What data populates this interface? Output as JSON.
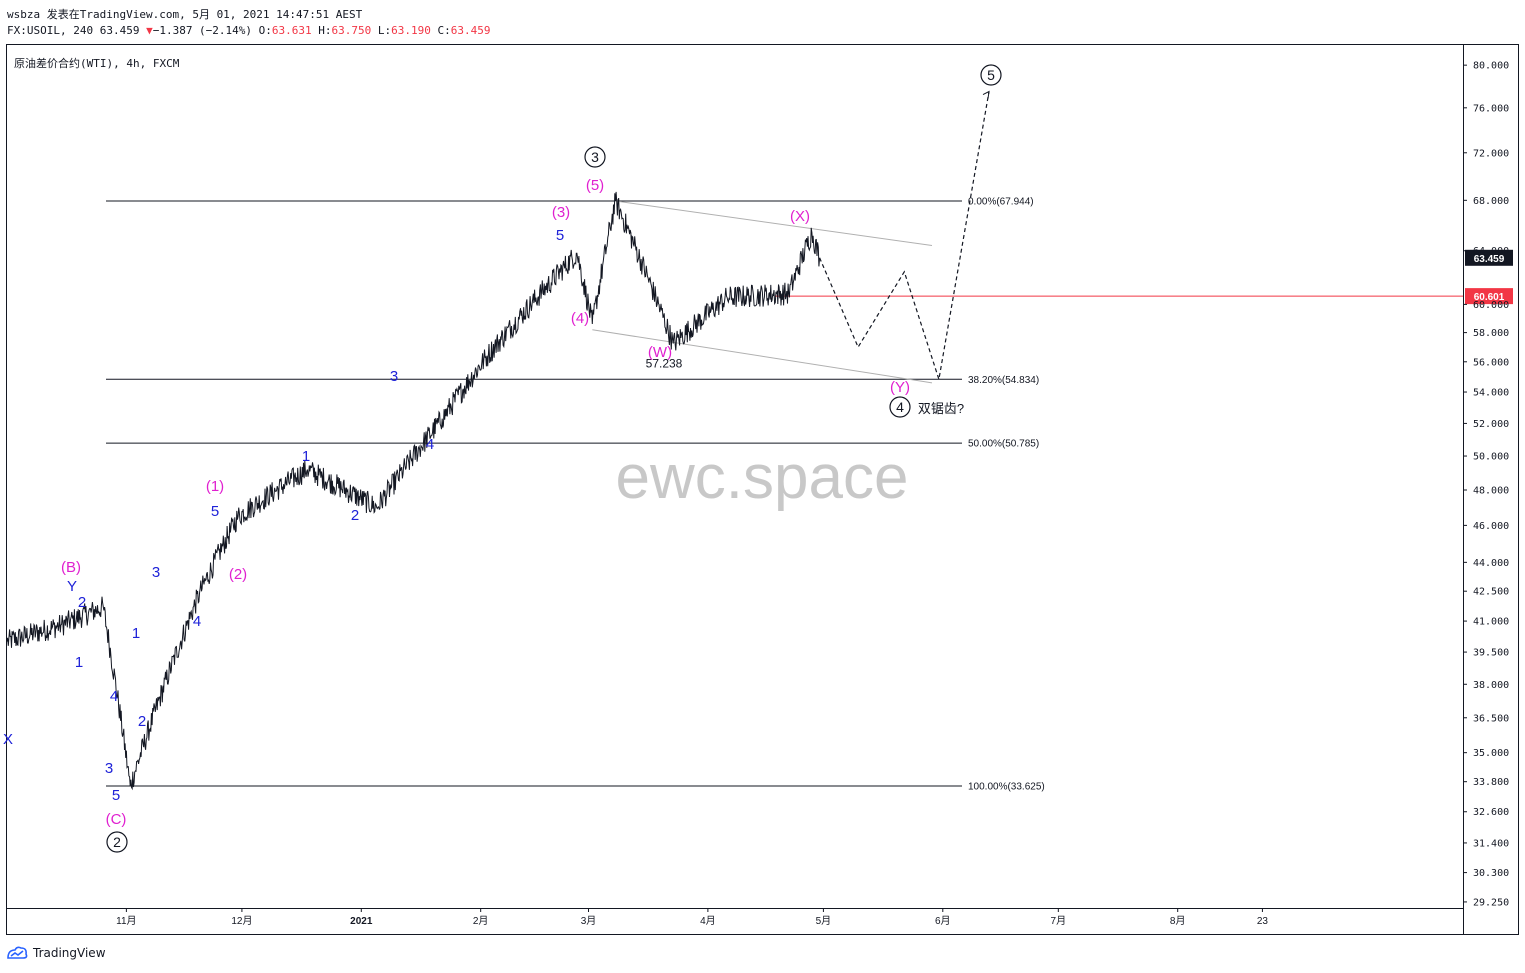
{
  "header": {
    "publisher_line": "wsbza 发表在TradingView.com, 5月 01, 2021 14:47:51 AEST",
    "symbol_prefix": "FX:USOIL, 240 63.459",
    "change": "−1.387 (−2.14%)",
    "o_label": "O:",
    "o_value": "63.631",
    "h_label": "H:",
    "h_value": "63.750",
    "l_label": "L:",
    "l_value": "63.190",
    "c_label": "C:",
    "c_value": "63.459"
  },
  "symbol_title": "原油差价合约(WTI), 4h, FXCM",
  "watermark": "ewc.space",
  "footer_brand": "TradingView",
  "colors": {
    "price_line": "#131722",
    "wave_blue": "#1e22d8",
    "wave_magenta": "#e020d0",
    "support_red": "#f23645",
    "watermark": "#c8c8c8",
    "last_price_bg": "#131722"
  },
  "chart_data": {
    "type": "line",
    "title": "原油差价合约(WTI), 4h, FXCM",
    "xlabel": "",
    "ylabel": "",
    "log_scale": true,
    "ylim": [
      29.25,
      80.0
    ],
    "grid": false,
    "x_ticks": [
      "11月",
      "12月",
      "2021",
      "2月",
      "3月",
      "4月",
      "5月",
      "6月",
      "7月",
      "8月",
      "23"
    ],
    "y_ticks": [
      "80.000",
      "76.000",
      "72.000",
      "68.000",
      "64.000",
      "60.000",
      "58.000",
      "56.000",
      "54.000",
      "52.000",
      "50.000",
      "48.000",
      "46.000",
      "44.000",
      "42.500",
      "41.000",
      "39.500",
      "38.000",
      "36.500",
      "35.000",
      "33.800",
      "32.600",
      "31.400",
      "30.300",
      "29.250"
    ],
    "series": [
      {
        "x": [
          "2020-10-01",
          "2020-10-15",
          "2020-10-26",
          "2020-11-02",
          "2020-11-20",
          "2020-11-30",
          "2020-12-18",
          "2021-01-05",
          "2021-01-22",
          "2021-02-03",
          "2021-02-26",
          "2021-03-02",
          "2021-03-08",
          "2021-03-23",
          "2021-04-06",
          "2021-04-22",
          "2021-04-28",
          "2021-04-30"
        ],
        "values": [
          40.0,
          40.8,
          41.7,
          33.625,
          42.4,
          46.5,
          49.2,
          47.0,
          52.3,
          56.5,
          63.8,
          58.6,
          67.944,
          57.238,
          60.5,
          60.8,
          65.4,
          63.459
        ]
      }
    ],
    "projection": {
      "x": [
        "2021-04-30",
        "2021-05-10",
        "2021-05-22",
        "2021-05-31",
        "2021-06-13"
      ],
      "values": [
        63.459,
        57.0,
        62.4,
        54.834,
        77.5
      ]
    },
    "fib_levels": [
      {
        "label": "0.00%(67.944)",
        "value": 67.944
      },
      {
        "label": "38.20%(54.834)",
        "value": 54.834
      },
      {
        "label": "50.00%(50.785)",
        "value": 50.785
      },
      {
        "label": "100.00%(33.625)",
        "value": 33.625
      }
    ],
    "support_line": {
      "value": 60.601,
      "label": "60.601"
    },
    "last_price": {
      "value": 63.459,
      "label": "63.459"
    },
    "low_annotation": "57.238",
    "wave_labels": [
      {
        "text": "Y",
        "color": "blue"
      },
      {
        "text": "(B)",
        "color": "magenta"
      },
      {
        "text": "2",
        "color": "blue"
      },
      {
        "text": "1",
        "color": "blue"
      },
      {
        "text": "4",
        "color": "blue"
      },
      {
        "text": "3",
        "color": "blue"
      },
      {
        "text": "5",
        "color": "blue"
      },
      {
        "text": "(C)",
        "color": "magenta"
      },
      {
        "text": "2",
        "color": "black",
        "circled": true
      },
      {
        "text": "1",
        "color": "blue"
      },
      {
        "text": "2",
        "color": "blue"
      },
      {
        "text": "3",
        "color": "blue"
      },
      {
        "text": "4",
        "color": "blue"
      },
      {
        "text": "5",
        "color": "blue"
      },
      {
        "text": "(1)",
        "color": "magenta"
      },
      {
        "text": "(2)",
        "color": "magenta"
      },
      {
        "text": "1",
        "color": "blue"
      },
      {
        "text": "2",
        "color": "blue"
      },
      {
        "text": "3",
        "color": "blue"
      },
      {
        "text": "4",
        "color": "blue"
      },
      {
        "text": "5",
        "color": "blue"
      },
      {
        "text": "(3)",
        "color": "magenta"
      },
      {
        "text": "(4)",
        "color": "magenta"
      },
      {
        "text": "(5)",
        "color": "magenta"
      },
      {
        "text": "3",
        "color": "black",
        "circled": true
      },
      {
        "text": "(W)",
        "color": "magenta"
      },
      {
        "text": "(X)",
        "color": "magenta"
      },
      {
        "text": "(Y)",
        "color": "magenta"
      },
      {
        "text": "4",
        "color": "black",
        "circled": true
      },
      {
        "text": "双锯齿?",
        "color": "black"
      },
      {
        "text": "5",
        "color": "black",
        "circled": true
      },
      {
        "text": "X",
        "color": "blue"
      }
    ]
  }
}
